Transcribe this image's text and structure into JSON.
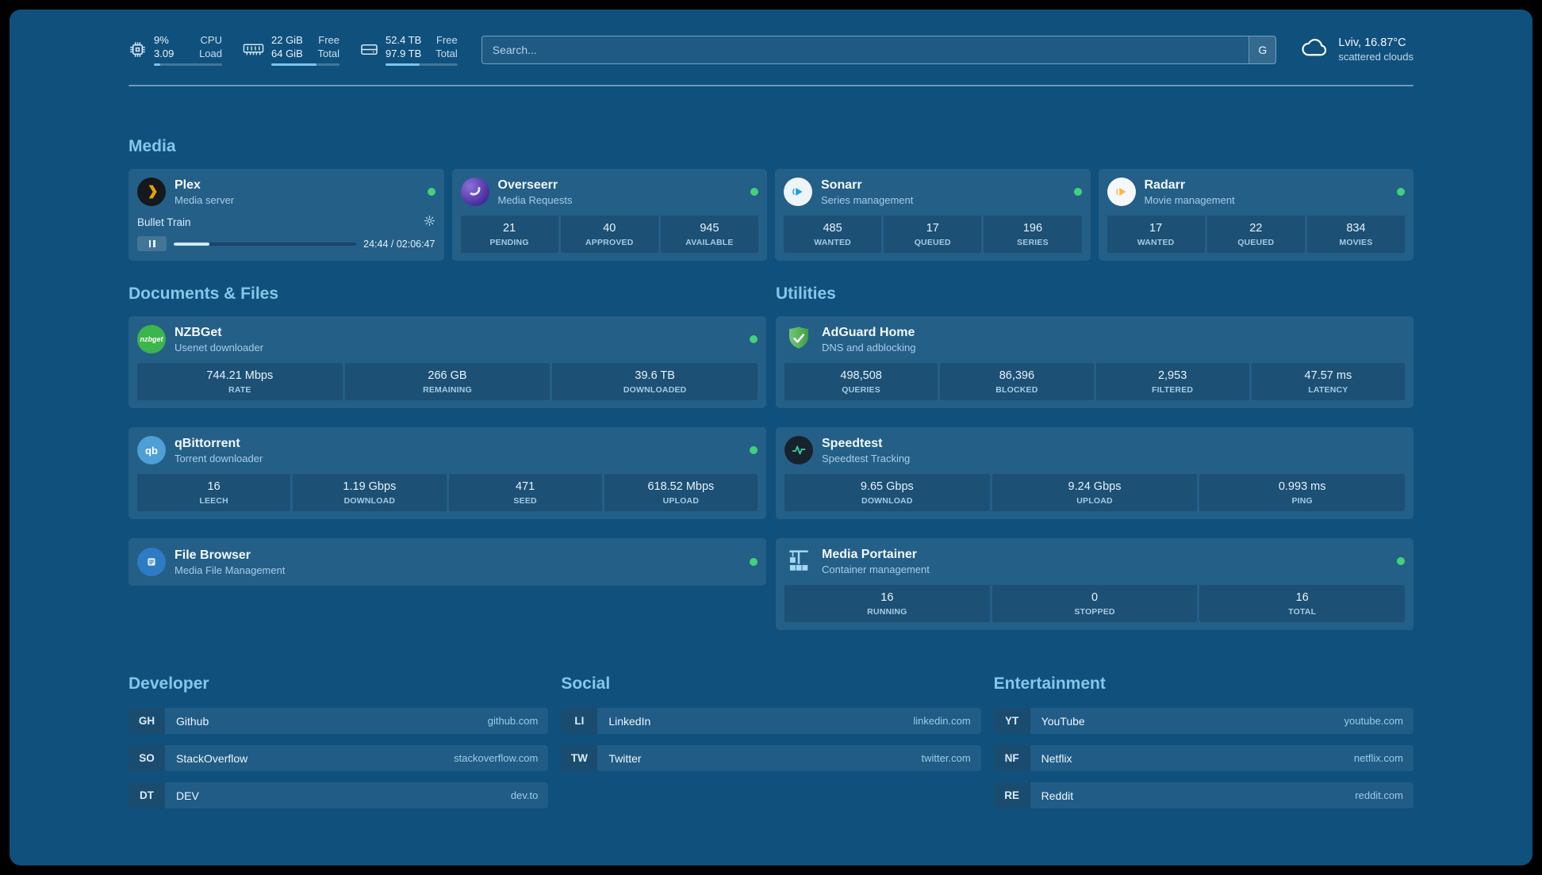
{
  "colors": {
    "background": "#10507c",
    "status_green": "#43d17c",
    "accent_blue": "#7cc4ef",
    "heading_blue": "#86c6e9"
  },
  "icons": {
    "cpu": "cpu-chip",
    "memory": "ram-stick",
    "disk": "hard-drive",
    "weather": "cloud",
    "plex": "plex-chevron",
    "overseerr": "purple-swirl",
    "sonarr": "play-arrow-blue",
    "radarr": "play-arrow-amber",
    "nzbget": "nzbget-wordmark",
    "qbittorrent": "qb-letters",
    "filebrowser": "file-glyph",
    "adguard": "green-shield-check",
    "speedtest": "waveform",
    "portainer": "container-crane",
    "gear": "gear",
    "pause": "pause-bars"
  },
  "topbar": {
    "resources": [
      {
        "values": [
          "9%",
          "3.09"
        ],
        "labels": [
          "CPU",
          "Load"
        ],
        "bar_pct": 9
      },
      {
        "values": [
          "22 GiB",
          "64 GiB"
        ],
        "labels": [
          "Free",
          "Total"
        ],
        "bar_pct": 66
      },
      {
        "values": [
          "52.4 TB",
          "97.9 TB"
        ],
        "labels": [
          "Free",
          "Total"
        ],
        "bar_pct": 47
      }
    ],
    "search": {
      "placeholder": "Search...",
      "provider_label": "G"
    },
    "weather": {
      "title": "Lviv, 16.87°C",
      "subtitle": "scattered clouds"
    }
  },
  "media": {
    "heading": "Media",
    "plex": {
      "name": "Plex",
      "subtitle": "Media server",
      "now_playing": "Bullet Train",
      "time": "24:44 / 02:06:47",
      "progress_pct": 19.5
    },
    "overseerr": {
      "name": "Overseerr",
      "subtitle": "Media Requests",
      "stats": [
        {
          "value": "21",
          "label": "PENDING"
        },
        {
          "value": "40",
          "label": "APPROVED"
        },
        {
          "value": "945",
          "label": "AVAILABLE"
        }
      ]
    },
    "sonarr": {
      "name": "Sonarr",
      "subtitle": "Series management",
      "stats": [
        {
          "value": "485",
          "label": "WANTED"
        },
        {
          "value": "17",
          "label": "QUEUED"
        },
        {
          "value": "196",
          "label": "SERIES"
        }
      ]
    },
    "radarr": {
      "name": "Radarr",
      "subtitle": "Movie management",
      "stats": [
        {
          "value": "17",
          "label": "WANTED"
        },
        {
          "value": "22",
          "label": "QUEUED"
        },
        {
          "value": "834",
          "label": "MOVIES"
        }
      ]
    }
  },
  "documents": {
    "heading": "Documents & Files",
    "nzbget": {
      "name": "NZBGet",
      "subtitle": "Usenet downloader",
      "stats": [
        {
          "value": "744.21 Mbps",
          "label": "RATE"
        },
        {
          "value": "266 GB",
          "label": "REMAINING"
        },
        {
          "value": "39.6 TB",
          "label": "DOWNLOADED"
        }
      ]
    },
    "qbittorrent": {
      "name": "qBittorrent",
      "subtitle": "Torrent downloader",
      "stats": [
        {
          "value": "16",
          "label": "LEECH"
        },
        {
          "value": "1.19 Gbps",
          "label": "DOWNLOAD"
        },
        {
          "value": "471",
          "label": "SEED"
        },
        {
          "value": "618.52 Mbps",
          "label": "UPLOAD"
        }
      ]
    },
    "filebrowser": {
      "name": "File Browser",
      "subtitle": "Media File Management"
    }
  },
  "utilities": {
    "heading": "Utilities",
    "adguard": {
      "name": "AdGuard Home",
      "subtitle": "DNS and adblocking",
      "stats": [
        {
          "value": "498,508",
          "label": "QUERIES"
        },
        {
          "value": "86,396",
          "label": "BLOCKED"
        },
        {
          "value": "2,953",
          "label": "FILTERED"
        },
        {
          "value": "47.57 ms",
          "label": "LATENCY"
        }
      ]
    },
    "speedtest": {
      "name": "Speedtest",
      "subtitle": "Speedtest Tracking",
      "stats": [
        {
          "value": "9.65 Gbps",
          "label": "DOWNLOAD"
        },
        {
          "value": "9.24 Gbps",
          "label": "UPLOAD"
        },
        {
          "value": "0.993 ms",
          "label": "PING"
        }
      ]
    },
    "portainer": {
      "name": "Media Portainer",
      "subtitle": "Container management",
      "stats": [
        {
          "value": "16",
          "label": "RUNNING"
        },
        {
          "value": "0",
          "label": "STOPPED"
        },
        {
          "value": "16",
          "label": "TOTAL"
        }
      ]
    }
  },
  "bookmarks": {
    "developer": {
      "heading": "Developer",
      "items": [
        {
          "abbr": "GH",
          "name": "Github",
          "url": "github.com"
        },
        {
          "abbr": "SO",
          "name": "StackOverflow",
          "url": "stackoverflow.com"
        },
        {
          "abbr": "DT",
          "name": "DEV",
          "url": "dev.to"
        }
      ]
    },
    "social": {
      "heading": "Social",
      "items": [
        {
          "abbr": "LI",
          "name": "LinkedIn",
          "url": "linkedin.com"
        },
        {
          "abbr": "TW",
          "name": "Twitter",
          "url": "twitter.com"
        }
      ]
    },
    "entertainment": {
      "heading": "Entertainment",
      "items": [
        {
          "abbr": "YT",
          "name": "YouTube",
          "url": "youtube.com"
        },
        {
          "abbr": "NF",
          "name": "Netflix",
          "url": "netflix.com"
        },
        {
          "abbr": "RE",
          "name": "Reddit",
          "url": "reddit.com"
        }
      ]
    }
  }
}
